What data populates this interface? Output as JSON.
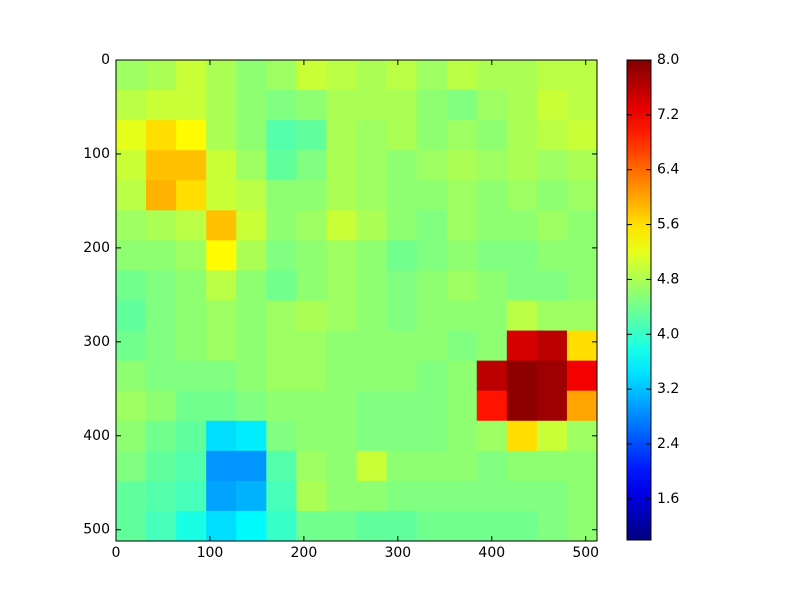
{
  "chart_data": {
    "type": "heatmap",
    "xlim": [
      0,
      512
    ],
    "xticks": [
      0,
      100,
      200,
      300,
      400,
      500
    ],
    "ylim": [
      512,
      0
    ],
    "yticks": [
      0,
      100,
      200,
      300,
      400,
      500
    ],
    "colormap": "jet",
    "clim": [
      1.0,
      8.0
    ],
    "cticks": [
      1.6,
      2.4,
      3.2,
      {
        "value": 4,
        "label": "4.0"
      },
      4.8,
      5.6,
      6.4,
      7.2,
      {
        "value": 8,
        "label": "8.0"
      }
    ],
    "values": [
      [
        4.7,
        4.8,
        5.0,
        4.8,
        4.6,
        4.7,
        5.0,
        4.9,
        4.8,
        4.9,
        4.7,
        4.9,
        4.8,
        4.8,
        4.9,
        4.9
      ],
      [
        4.9,
        5.0,
        5.0,
        4.8,
        4.6,
        4.5,
        4.6,
        4.8,
        4.8,
        4.8,
        4.6,
        4.5,
        4.7,
        4.8,
        5.0,
        4.9
      ],
      [
        5.2,
        5.6,
        5.4,
        4.8,
        4.6,
        4.2,
        4.3,
        4.8,
        4.7,
        4.8,
        4.6,
        4.7,
        4.6,
        4.8,
        4.9,
        5.0
      ],
      [
        5.0,
        5.8,
        5.8,
        5.0,
        4.7,
        4.3,
        4.5,
        4.8,
        4.7,
        4.6,
        4.7,
        4.8,
        4.7,
        4.8,
        4.7,
        4.8
      ],
      [
        4.9,
        5.9,
        5.6,
        5.0,
        4.9,
        4.6,
        4.6,
        4.8,
        4.7,
        4.6,
        4.6,
        4.7,
        4.6,
        4.7,
        4.6,
        4.7
      ],
      [
        4.7,
        4.8,
        4.9,
        5.8,
        5.0,
        4.6,
        4.7,
        5.0,
        4.8,
        4.6,
        4.5,
        4.7,
        4.6,
        4.6,
        4.7,
        4.6
      ],
      [
        4.6,
        4.6,
        4.7,
        5.4,
        4.8,
        4.5,
        4.6,
        4.7,
        4.6,
        4.4,
        4.5,
        4.6,
        4.5,
        4.5,
        4.6,
        4.6
      ],
      [
        4.4,
        4.5,
        4.6,
        4.9,
        4.6,
        4.4,
        4.6,
        4.7,
        4.6,
        4.5,
        4.6,
        4.7,
        4.6,
        4.5,
        4.5,
        4.6
      ],
      [
        4.3,
        4.5,
        4.6,
        4.7,
        4.6,
        4.7,
        4.8,
        4.7,
        4.6,
        4.5,
        4.6,
        4.6,
        4.6,
        4.9,
        4.7,
        4.7
      ],
      [
        4.4,
        4.5,
        4.6,
        4.7,
        4.6,
        4.7,
        4.7,
        4.6,
        4.6,
        4.6,
        4.6,
        4.5,
        4.6,
        7.4,
        7.6,
        5.6
      ],
      [
        4.6,
        4.5,
        4.5,
        4.5,
        4.6,
        4.7,
        4.7,
        4.6,
        4.6,
        4.6,
        4.5,
        4.6,
        7.6,
        7.9,
        7.8,
        7.2
      ],
      [
        4.7,
        4.6,
        4.4,
        4.4,
        4.5,
        4.6,
        4.6,
        4.6,
        4.5,
        4.5,
        4.5,
        4.6,
        7.0,
        7.9,
        7.8,
        6.0
      ],
      [
        4.6,
        4.4,
        4.3,
        3.4,
        3.5,
        4.5,
        4.6,
        4.6,
        4.5,
        4.5,
        4.5,
        4.6,
        4.7,
        5.6,
        5.0,
        4.7
      ],
      [
        4.5,
        4.3,
        4.2,
        2.9,
        2.9,
        4.2,
        4.7,
        4.6,
        5.0,
        4.6,
        4.6,
        4.6,
        4.5,
        4.6,
        4.6,
        4.6
      ],
      [
        4.3,
        4.2,
        4.1,
        3.0,
        3.1,
        4.1,
        4.8,
        4.6,
        4.6,
        4.5,
        4.5,
        4.5,
        4.5,
        4.5,
        4.5,
        4.6
      ],
      [
        4.3,
        4.1,
        3.8,
        3.4,
        3.6,
        4.0,
        4.4,
        4.4,
        4.3,
        4.3,
        4.4,
        4.4,
        4.4,
        4.4,
        4.5,
        4.6
      ]
    ]
  }
}
